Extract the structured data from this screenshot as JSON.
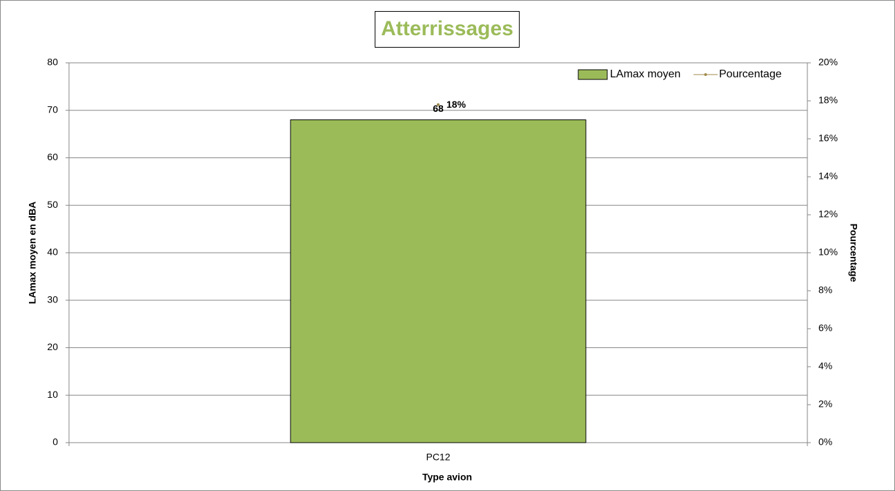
{
  "chart_data": {
    "type": "bar",
    "title": "Atterrissages",
    "categories": [
      "PC12"
    ],
    "series": [
      {
        "name": "LAmax moyen",
        "type": "bar",
        "color": "#9bbb59",
        "values": [
          68
        ]
      },
      {
        "name": "Pourcentage",
        "type": "line",
        "axis": "y2",
        "color": "#a08a4a",
        "values": [
          17.8
        ],
        "value_labels": [
          "18%"
        ]
      }
    ],
    "xlabel": "Type avion",
    "ylabel": "LAmax moyen en dBA",
    "y2label": "Pourcentage",
    "ylim": [
      0,
      80
    ],
    "yticks": [
      0,
      10,
      20,
      30,
      40,
      50,
      60,
      70,
      80
    ],
    "y2lim": [
      0,
      20
    ],
    "y2ticks": [
      {
        "value": 0,
        "label": "0%"
      },
      {
        "value": 2,
        "label": "2%"
      },
      {
        "value": 4,
        "label": "4%"
      },
      {
        "value": 6,
        "label": "6%"
      },
      {
        "value": 8,
        "label": "8%"
      },
      {
        "value": 10,
        "label": "10%"
      },
      {
        "value": 12,
        "label": "12%"
      },
      {
        "value": 14,
        "label": "14%"
      },
      {
        "value": 16,
        "label": "16%"
      },
      {
        "value": 18,
        "label": "18%"
      },
      {
        "value": 20,
        "label": "20%"
      }
    ],
    "grid": true,
    "legend": "top-right"
  }
}
